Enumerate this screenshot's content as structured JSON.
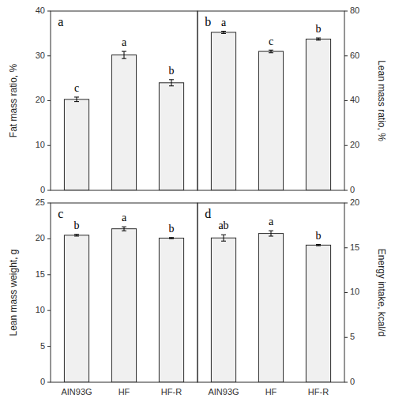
{
  "chart_data": [
    {
      "type": "bar",
      "title": "a",
      "ylabel": "Fat mass ratio, %",
      "categories": [
        "AIN93G",
        "HF",
        "HF-R"
      ],
      "values": [
        20.3,
        30.2,
        24.0
      ],
      "errors": [
        0.5,
        0.8,
        0.7
      ],
      "annotations": [
        "c",
        "a",
        "b"
      ],
      "color": "#f0f0f0",
      "ylim": [
        0,
        40
      ],
      "yticks": [
        0,
        10,
        20,
        30,
        40
      ],
      "grid": false,
      "tick_labels": "y"
    },
    {
      "type": "bar",
      "title": "b",
      "ylabel": "Lean mass ratio, %",
      "categories": [
        "AIN93G",
        "HF",
        "HF-R"
      ],
      "values": [
        70.5,
        62.0,
        67.5
      ],
      "errors": [
        0.5,
        0.6,
        0.5
      ],
      "annotations": [
        "a",
        "c",
        "b"
      ],
      "color": "#f0f0f0",
      "ylim": [
        0,
        80
      ],
      "yticks": [
        0,
        20,
        40,
        60,
        80
      ],
      "grid": false,
      "tick_labels": "y"
    },
    {
      "type": "bar",
      "title": "c",
      "ylabel": "Lean mass weight, g",
      "categories": [
        "AIN93G",
        "HF",
        "HF-R"
      ],
      "values": [
        20.5,
        21.4,
        20.1
      ],
      "errors": [
        0.12,
        0.28,
        0.08
      ],
      "annotations": [
        "b",
        "a",
        "b"
      ],
      "color": "#f0f0f0",
      "ylim": [
        0,
        25
      ],
      "yticks": [
        0,
        5,
        10,
        15,
        20,
        25
      ],
      "grid": false,
      "tick_labels": true
    },
    {
      "type": "bar",
      "title": "d",
      "ylabel": "Energy intake, kcal/d",
      "categories": [
        "AIN93G",
        "HF",
        "HF-R"
      ],
      "values": [
        16.1,
        16.6,
        15.3
      ],
      "errors": [
        0.35,
        0.3,
        0.07
      ],
      "annotations": [
        "ab",
        "a",
        "b"
      ],
      "color": "#f0f0f0",
      "ylim": [
        0,
        20
      ],
      "yticks": [
        0,
        5,
        10,
        15,
        20
      ],
      "grid": false,
      "tick_labels": true
    }
  ]
}
